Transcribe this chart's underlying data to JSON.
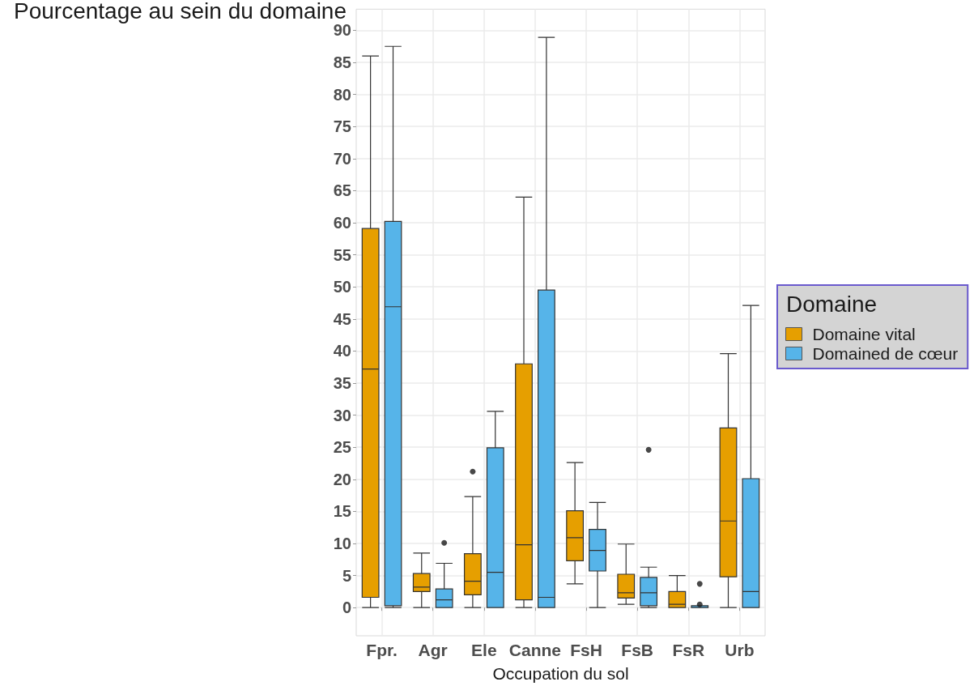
{
  "chart_data": {
    "type": "box",
    "ylabel": "Pourcentage au sein du domaine",
    "xlabel": "Occupation du sol",
    "legend_title": "Domaine",
    "categories": [
      "Fpr.",
      "Agr",
      "Ele",
      "Canne",
      "FsH",
      "FsB",
      "FsR",
      "Urb"
    ],
    "series": [
      {
        "name": "Domaine vital",
        "color": "#e69f00",
        "boxes": [
          {
            "low": 0,
            "q1": 1.6,
            "median": 37.2,
            "q3": 59.1,
            "high": 86
          },
          {
            "low": 0,
            "q1": 2.5,
            "median": 3.2,
            "q3": 5.3,
            "high": 8.5
          },
          {
            "low": 0,
            "q1": 2,
            "median": 4.1,
            "q3": 8.4,
            "high": 17.3,
            "outliers": [
              21.2
            ]
          },
          {
            "low": 0,
            "q1": 1.2,
            "median": 9.8,
            "q3": 38,
            "high": 64
          },
          {
            "low": 3.7,
            "q1": 7.3,
            "median": 10.9,
            "q3": 15.1,
            "high": 22.6
          },
          {
            "low": 0.5,
            "q1": 1.5,
            "median": 2.3,
            "q3": 5.2,
            "high": 9.9
          },
          {
            "low": 0,
            "q1": 0,
            "median": 0.5,
            "q3": 2.5,
            "high": 5
          },
          {
            "low": 0,
            "q1": 4.8,
            "median": 13.5,
            "q3": 28,
            "high": 39.6
          }
        ]
      },
      {
        "name": "Domained de cœur",
        "color": "#56b4e9",
        "boxes": [
          {
            "low": 0,
            "q1": 0.3,
            "median": 46.9,
            "q3": 60.2,
            "high": 87.5
          },
          {
            "low": 0,
            "q1": 0,
            "median": 1.2,
            "q3": 2.9,
            "high": 6.9,
            "outliers": [
              10.1
            ]
          },
          {
            "low": 0,
            "q1": 0,
            "median": 5.5,
            "q3": 24.9,
            "high": 30.6
          },
          {
            "low": 0,
            "q1": 0,
            "median": 1.6,
            "q3": 49.5,
            "high": 88.9
          },
          {
            "low": 0,
            "q1": 5.7,
            "median": 8.9,
            "q3": 12.2,
            "high": 16.4
          },
          {
            "low": 0,
            "q1": 0.3,
            "median": 2.3,
            "q3": 4.7,
            "high": 6.3,
            "outliers": [
              24.6
            ]
          },
          {
            "low": 0,
            "q1": 0,
            "median": 0,
            "q3": 0.3,
            "high": 0.3,
            "outliers": [
              3.7,
              0.5
            ]
          },
          {
            "low": 0,
            "q1": 0,
            "median": 2.5,
            "q3": 20.1,
            "high": 47.1
          }
        ]
      }
    ],
    "ylim": [
      -4.4,
      93.3
    ],
    "yticks": [
      0,
      5,
      10,
      15,
      20,
      25,
      30,
      35,
      40,
      45,
      50,
      55,
      60,
      65,
      70,
      75,
      80,
      85,
      90
    ],
    "grid": true,
    "legend": "right"
  }
}
